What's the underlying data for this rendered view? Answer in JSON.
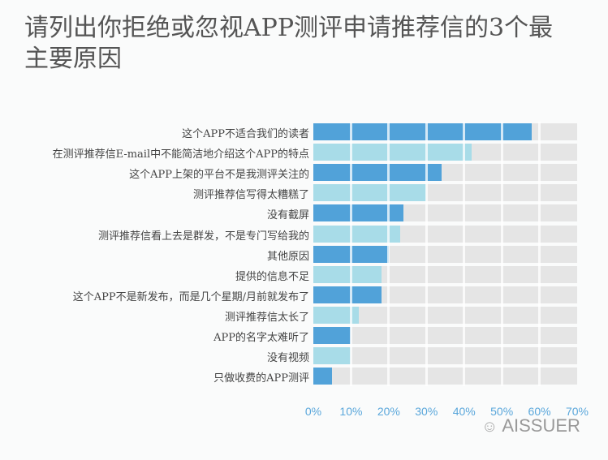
{
  "title": "请列出你拒绝或忽视APP测评申请推荐信的3个最主要原因",
  "watermark": "AISSUER",
  "chart_data": {
    "type": "bar",
    "orientation": "horizontal",
    "title": "请列出你拒绝或忽视APP测评申请推荐信的3个最主要原因",
    "categories": [
      "这个APP不适合我们的读者",
      "在测评推荐信E-mail中不能简洁地介绍这个APP的特点",
      "这个APP上架的平台不是我测评关注的",
      "测评推荐信写得太糟糕了",
      "没有截屏",
      "测评推荐信看上去是群发，不是专门写给我的",
      "其他原因",
      "提供的信息不足",
      "这个APP不是新发布，而是几个星期/月前就发布了",
      "测评推荐信太长了",
      "APP的名字太难听了",
      "没有视频",
      "只做收费的APP测评"
    ],
    "values": [
      58,
      42,
      34,
      30,
      24,
      23,
      20,
      18,
      18,
      12,
      10,
      10,
      5
    ],
    "xlim": [
      0,
      70
    ],
    "xticks": [
      "0%",
      "10%",
      "20%",
      "30%",
      "40%",
      "50%",
      "60%",
      "70%"
    ],
    "colors": [
      "#51a2d9",
      "#a8dce8"
    ],
    "track_color": "#e5e5e5",
    "grid": true
  }
}
